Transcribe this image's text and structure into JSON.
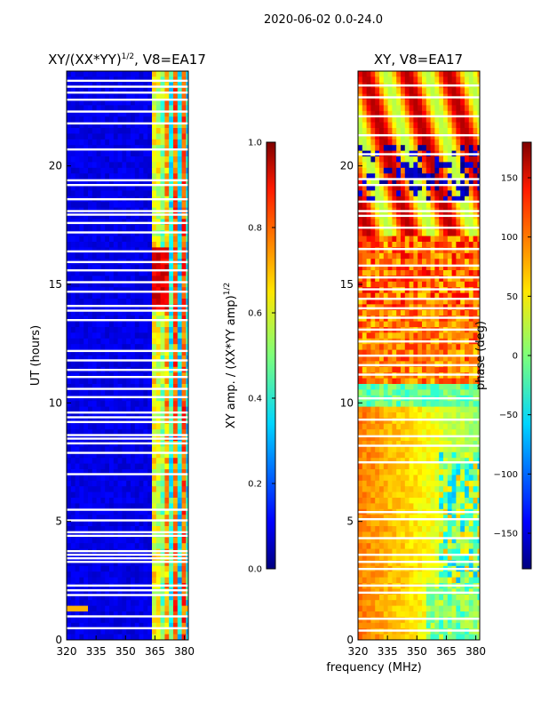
{
  "chart_data": {
    "suptitle": "2020-06-02 0.0-24.0",
    "xlabel": "frequency (MHz)",
    "panels": [
      {
        "type": "heatmap",
        "title_main": "XY/(XX*YY)",
        "title_sup": "1/2",
        "title_tail": ", V8=EA17",
        "ylabel": "UT (hours)",
        "xlim": [
          320,
          382
        ],
        "ylim": [
          0,
          24
        ],
        "xticks": [
          320,
          335,
          350,
          365,
          380
        ],
        "yticks": [
          0,
          5,
          10,
          15,
          20
        ],
        "gaps_ut": [
          0.5,
          1.0,
          1.9,
          2.1,
          2.3,
          3.3,
          3.45,
          3.6,
          3.75,
          4.4,
          4.55,
          5.05,
          5.5,
          7.0,
          7.9,
          8.3,
          8.5,
          8.65,
          9.2,
          9.4,
          9.6,
          10.25,
          10.6,
          11.1,
          11.4,
          11.8,
          12.2,
          13.5,
          13.9,
          14.1,
          14.7,
          15.1,
          15.6,
          15.95,
          16.4,
          17.2,
          17.6,
          17.95,
          18.1,
          18.6,
          19.2,
          19.4,
          20.7,
          21.8,
          22.3,
          22.8,
          23.1,
          23.35,
          23.6
        ],
        "colorbar": {
          "label_main": "XY amp. / (XX*YY amp)",
          "label_sup": "1/2",
          "range": [
            0.0,
            1.0
          ],
          "ticks": [
            0.0,
            0.2,
            0.4,
            0.6,
            0.8,
            1.0
          ],
          "ticklabels": [
            "0.0",
            "0.2",
            "0.4",
            "0.6",
            "0.8",
            "1.0"
          ]
        }
      },
      {
        "type": "heatmap",
        "title_main": "XY, V8=EA17",
        "xlim": [
          320,
          382
        ],
        "ylim": [
          0,
          24
        ],
        "xticks": [
          320,
          335,
          350,
          365,
          380
        ],
        "yticks": [
          0,
          5,
          10,
          15,
          20
        ],
        "gaps_ut": [
          0.4,
          0.9,
          2.0,
          2.3,
          3.0,
          3.3,
          3.6,
          4.3,
          5.1,
          5.4,
          7.5,
          8.2,
          8.6,
          9.3,
          10.2,
          11.2,
          11.6,
          12.0,
          12.6,
          13.1,
          13.6,
          14.0,
          14.4,
          14.8,
          15.3,
          15.8,
          16.5,
          17.4,
          17.9,
          18.1,
          18.5,
          19.2,
          19.45,
          20.5,
          21.3,
          22.1,
          22.9,
          23.4
        ],
        "colorbar": {
          "label_main": "phase (deg)",
          "range": [
            -180,
            180
          ],
          "ticks": [
            -150,
            -100,
            -50,
            0,
            50,
            100,
            150
          ],
          "ticklabels": [
            "−150",
            "−100",
            "−50",
            "0",
            "50",
            "100",
            "150"
          ]
        }
      }
    ]
  }
}
